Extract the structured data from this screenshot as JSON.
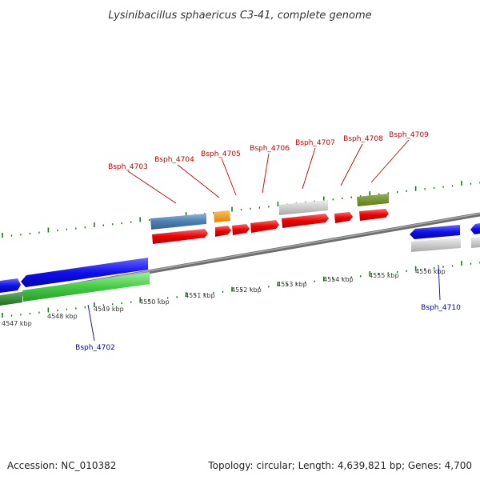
{
  "title": "Lysinibacillus sphaericus C3-41, complete genome",
  "footer": {
    "accession": "Accession: NC_010382",
    "summary": "Topology: circular; Length: 4,639,821 bp; Genes: 4,700"
  },
  "colors": {
    "forward_label": "#cc0000",
    "reverse_label": "#0000bb",
    "backbone": "#808080",
    "ticks": "#1a7a1a"
  },
  "scale_labels": [
    "4547 kbp",
    "4548 kbp",
    "4549 kbp",
    "4550 kbp",
    "4551 kbp",
    "4552 kbp",
    "4553 kbp",
    "4554 kbp",
    "4555 kbp",
    "4556 kbp"
  ],
  "gene_labels": {
    "forward": [
      "Bsph_4703",
      "Bsph_4704",
      "Bsph_4705",
      "Bsph_4706",
      "Bsph_4707",
      "Bsph_4708",
      "Bsph_4709"
    ],
    "reverse": [
      "Bsph_4702",
      "Bsph_4710"
    ]
  }
}
